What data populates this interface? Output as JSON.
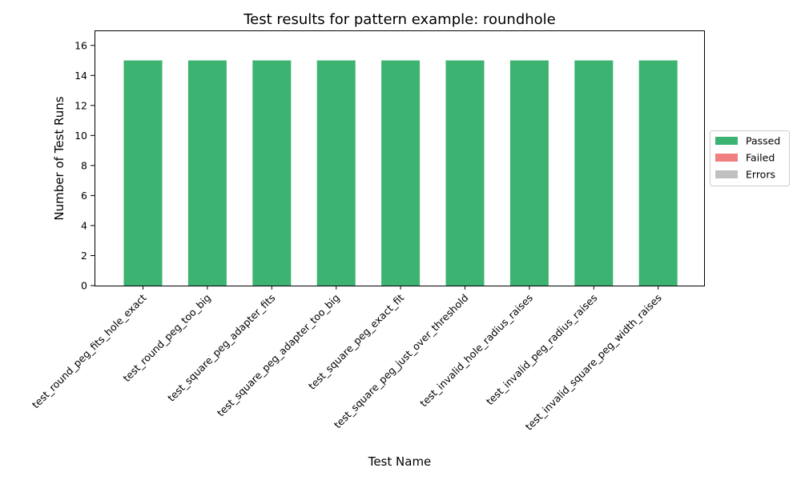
{
  "chart_data": {
    "type": "bar",
    "stacked": true,
    "title": "Test results for pattern example: roundhole",
    "xlabel": "Test Name",
    "ylabel": "Number of Test Runs",
    "ylim": [
      0,
      17
    ],
    "yticks": [
      0,
      2,
      4,
      6,
      8,
      10,
      12,
      14,
      16
    ],
    "categories": [
      "test_round_peg_fits_hole_exact",
      "test_round_peg_too_big",
      "test_square_peg_adapter_fits",
      "test_square_peg_adapter_too_big",
      "test_square_peg_exact_fit",
      "test_square_peg_just_over_threshold",
      "test_invalid_hole_radius_raises",
      "test_invalid_peg_radius_raises",
      "test_invalid_square_peg_width_raises"
    ],
    "series": [
      {
        "name": "Passed",
        "color": "#3cb371",
        "values": [
          15,
          15,
          15,
          15,
          15,
          15,
          15,
          15,
          15
        ]
      },
      {
        "name": "Failed",
        "color": "#f08080",
        "values": [
          0,
          0,
          0,
          0,
          0,
          0,
          0,
          0,
          0
        ]
      },
      {
        "name": "Errors",
        "color": "#c0c0c0",
        "values": [
          0,
          0,
          0,
          0,
          0,
          0,
          0,
          0,
          0
        ]
      }
    ],
    "grid": false,
    "legend_position": "right"
  }
}
